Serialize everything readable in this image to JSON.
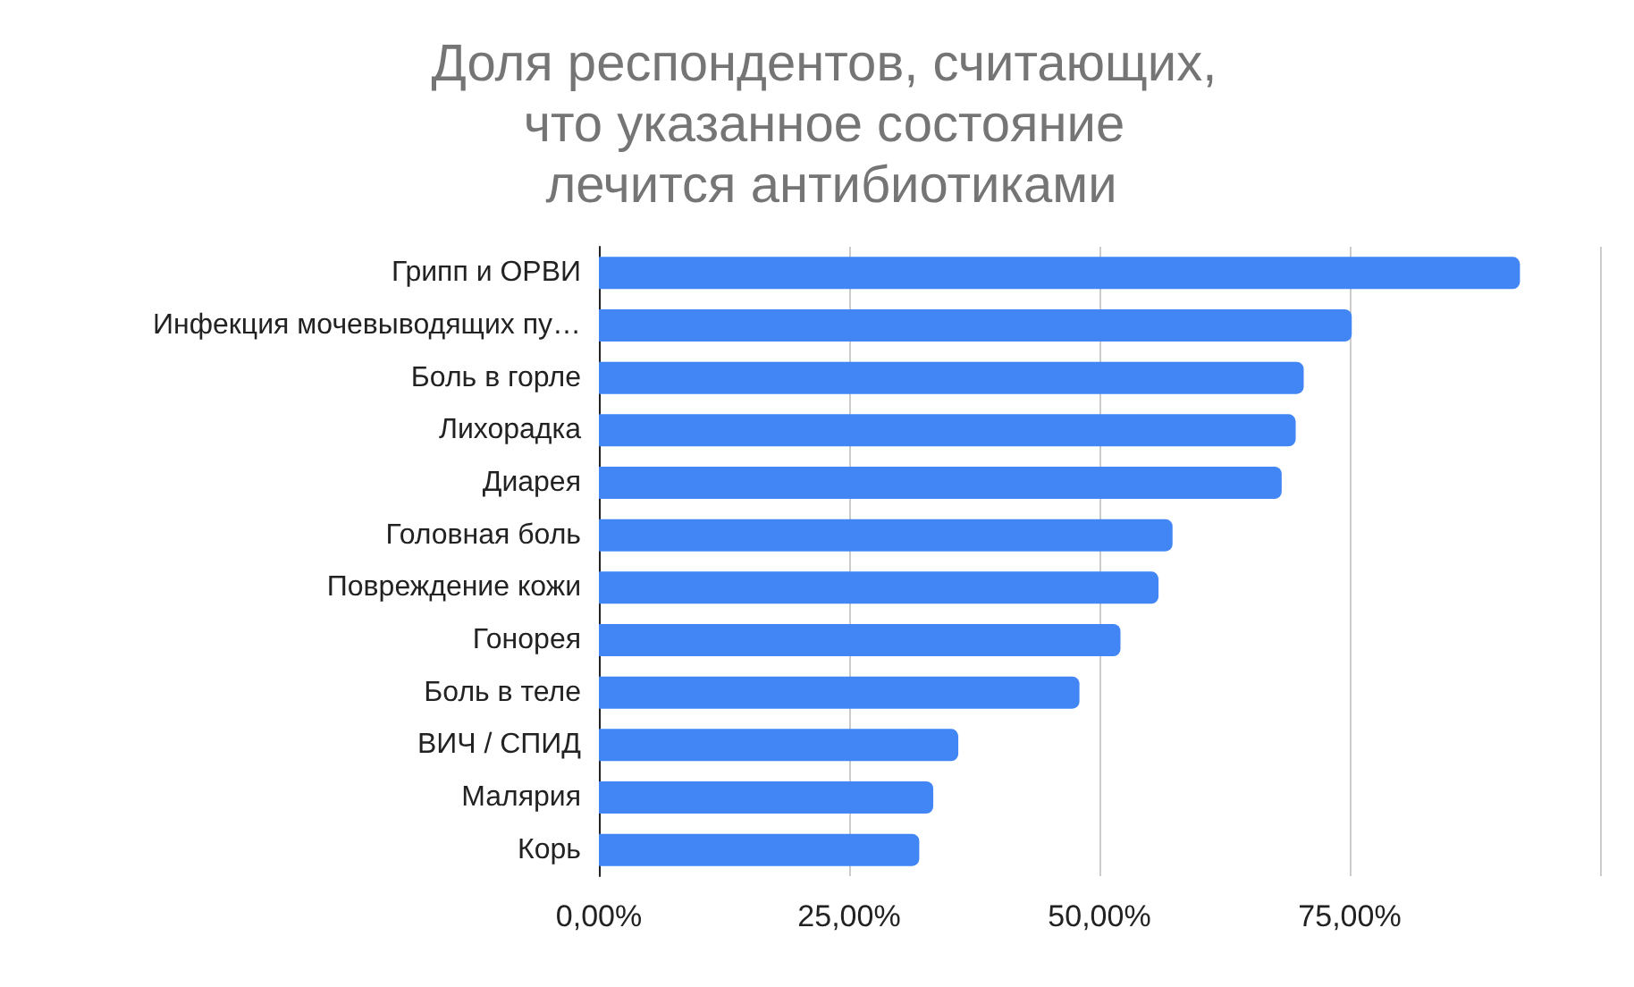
{
  "chart_data": {
    "type": "bar",
    "orientation": "horizontal",
    "title": "Доля респондентов, считающих, что указанное состояние лечится антибиотиками",
    "categories": [
      "Грипп и ОРВИ",
      "Инфекция мочевыводящих пу…",
      "Боль в горле",
      "Лихорадка",
      "Диарея",
      "Головная боль",
      "Повреждение кожи",
      "Гонорея",
      "Боль в теле",
      "ВИЧ / СПИД",
      "Малярия",
      "Корь"
    ],
    "values": [
      92.0,
      75.2,
      70.4,
      69.6,
      68.2,
      57.3,
      55.9,
      52.1,
      48.0,
      35.9,
      33.4,
      32.0
    ],
    "color": "#4285f4",
    "xlim": [
      0,
      100
    ],
    "xticks": [
      {
        "value": 0,
        "label": "0,00%"
      },
      {
        "value": 25,
        "label": "25,00%"
      },
      {
        "value": 50,
        "label": "50,00%"
      },
      {
        "value": 75,
        "label": "75,00%"
      },
      {
        "value": 100,
        "label": null
      }
    ],
    "grid": "x"
  }
}
